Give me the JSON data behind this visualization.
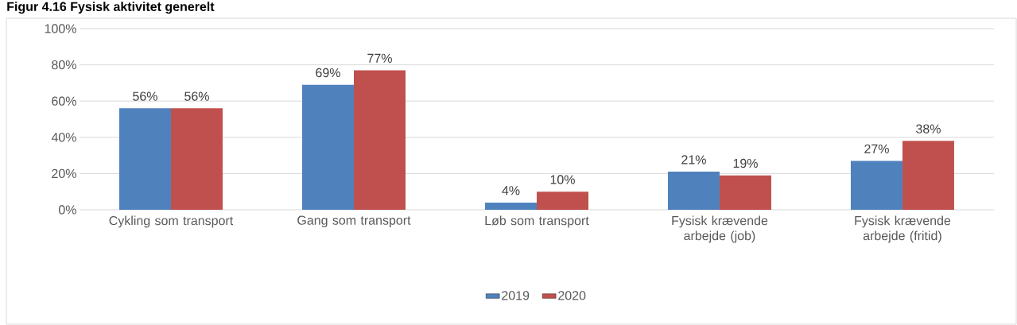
{
  "chart_data": {
    "type": "bar",
    "title": "Figur 4.16 Fysisk aktivitet generelt",
    "categories": [
      "Cykling som transport",
      "Gang som transport",
      "Løb som transport",
      "Fysisk krævende arbejde (job)",
      "Fysisk krævende arbejde (fritid)"
    ],
    "series": [
      {
        "name": "2019",
        "color": "#4f81bd",
        "values": [
          56,
          69,
          4,
          21,
          27
        ],
        "value_labels": [
          "56%",
          "69%",
          "4%",
          "21%",
          "27%"
        ]
      },
      {
        "name": "2020",
        "color": "#c0504d",
        "values": [
          56,
          77,
          10,
          19,
          38
        ],
        "value_labels": [
          "56%",
          "77%",
          "10%",
          "19%",
          "38%"
        ]
      }
    ],
    "ylim": [
      0,
      100
    ],
    "yticks": [
      {
        "value": 0,
        "label": "0%"
      },
      {
        "value": 20,
        "label": "20%"
      },
      {
        "value": 40,
        "label": "40%"
      },
      {
        "value": 60,
        "label": "60%"
      },
      {
        "value": 80,
        "label": "80%"
      },
      {
        "value": 100,
        "label": "100%"
      }
    ],
    "grid": "y",
    "legend": "bottom"
  }
}
